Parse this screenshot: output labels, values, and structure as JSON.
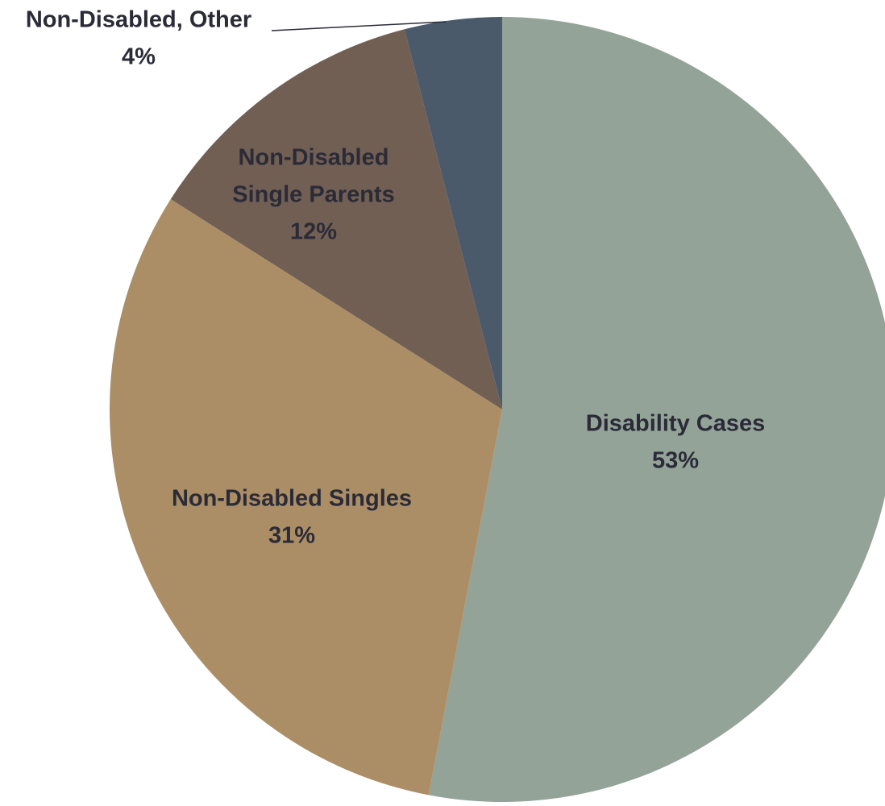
{
  "chart_data": {
    "type": "pie",
    "title": "",
    "slices": [
      {
        "label": "Disability Cases",
        "label_lines": [
          "Disability Cases"
        ],
        "value": 53,
        "value_label": "53%",
        "color": "#93a398"
      },
      {
        "label": "Non-Disabled Singles",
        "label_lines": [
          "Non-Disabled Singles"
        ],
        "value": 31,
        "value_label": "31%",
        "color": "#ab8e66"
      },
      {
        "label": "Non-Disabled Single Parents",
        "label_lines": [
          "Non-Disabled",
          "Single Parents"
        ],
        "value": 12,
        "value_label": "12%",
        "color": "#715f54"
      },
      {
        "label": "Non-Disabled, Other",
        "label_lines": [
          "Non-Disabled, Other"
        ],
        "value": 4,
        "value_label": "4%",
        "color": "#4a5a6a"
      }
    ],
    "start_angle": "12 o'clock",
    "direction": "clockwise",
    "legend": "none",
    "label_text_color": "#2b2b38",
    "leader_line_color": "#2b2b38"
  }
}
